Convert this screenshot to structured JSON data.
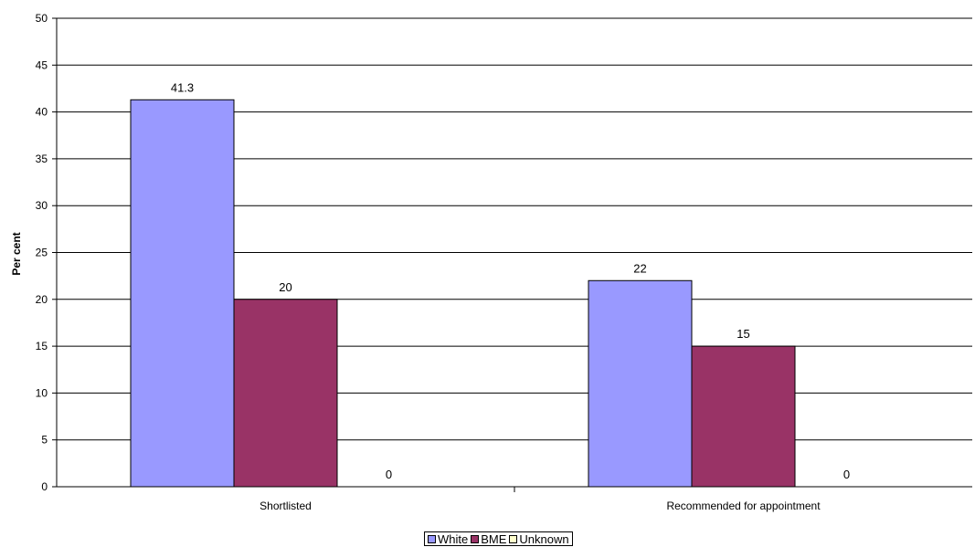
{
  "chart_data": {
    "type": "bar",
    "categories": [
      "Shortlisted",
      "Recommended for appointment"
    ],
    "series": [
      {
        "name": "White",
        "values": [
          41.3,
          22
        ],
        "color": "#9999FF"
      },
      {
        "name": "BME",
        "values": [
          20,
          15
        ],
        "color": "#993366"
      },
      {
        "name": "Unknown",
        "values": [
          0,
          0
        ],
        "color": "#FFFFCC"
      }
    ],
    "title": "",
    "xlabel": "",
    "ylabel": "Per cent",
    "ylim": [
      0,
      50
    ],
    "yticks": [
      0,
      5,
      10,
      15,
      20,
      25,
      30,
      35,
      40,
      45,
      50
    ],
    "grid": true,
    "legend_position": "bottom"
  }
}
